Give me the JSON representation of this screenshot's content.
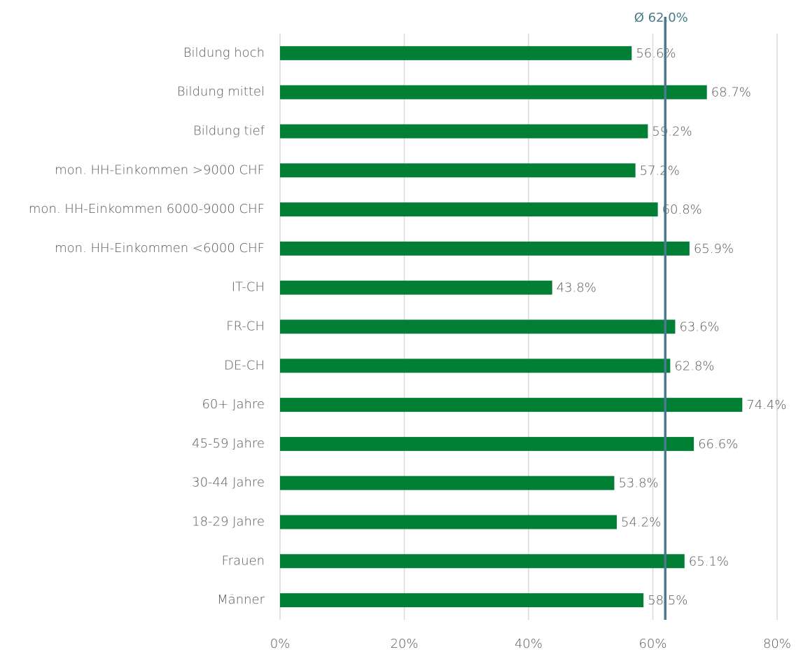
{
  "chart_data": {
    "type": "barh",
    "categories": [
      "Bildung hoch",
      "Bildung mittel",
      "Bildung tief",
      "mon. HH-Einkommen >9000 CHF",
      "mon. HH-Einkommen 6000-9000 CHF",
      "mon. HH-Einkommen <6000 CHF",
      "IT-CH",
      "FR-CH",
      "DE-CH",
      "60+ Jahre",
      "45-59 Jahre",
      "30-44 Jahre",
      "18-29 Jahre",
      "Frauen",
      "Männer"
    ],
    "values": [
      56.6,
      68.7,
      59.2,
      57.2,
      60.8,
      65.9,
      43.8,
      63.6,
      62.8,
      74.4,
      66.6,
      53.8,
      54.2,
      65.1,
      58.5
    ],
    "value_labels": [
      "56.6%",
      "68.7%",
      "59.2%",
      "57.2%",
      "60.8%",
      "65.9%",
      "43.8%",
      "63.6%",
      "62.8%",
      "74.4%",
      "66.6%",
      "53.8%",
      "54.2%",
      "65.1%",
      "58.5%"
    ],
    "color": "#007f35",
    "xlim": [
      0,
      80
    ],
    "xticks": [
      {
        "value": 0,
        "label": "0%"
      },
      {
        "value": 20,
        "label": "20%"
      },
      {
        "value": 40,
        "label": "40%"
      },
      {
        "value": 60,
        "label": "60%"
      },
      {
        "value": 80,
        "label": "80%"
      }
    ],
    "grid": true,
    "reference_line": {
      "value": 62.0,
      "label": "Ø 62.0%",
      "color": "#4a7b8c"
    }
  }
}
